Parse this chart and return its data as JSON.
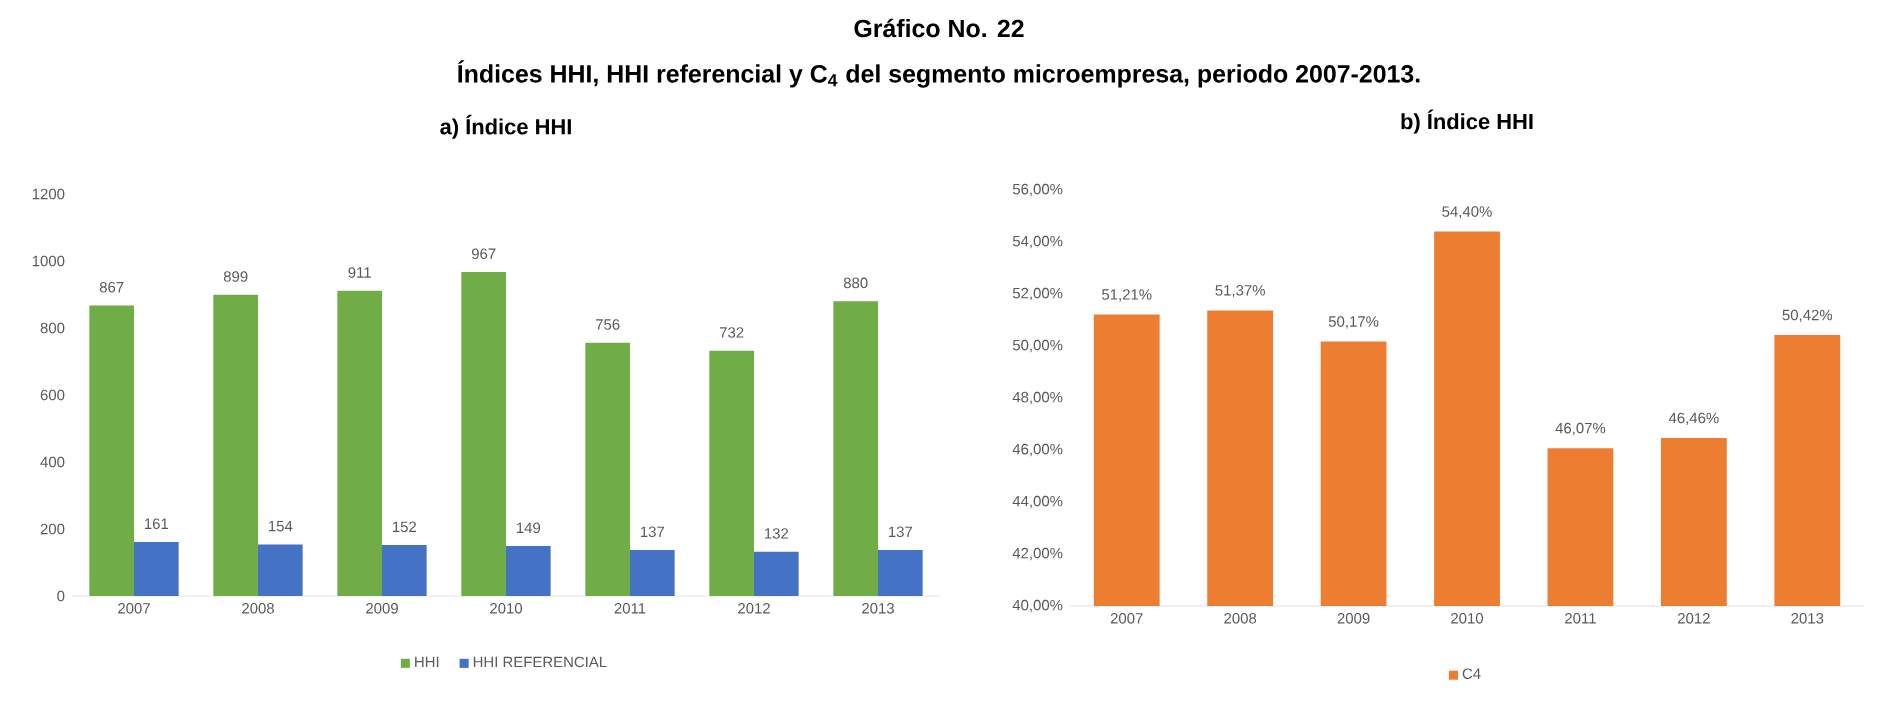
{
  "chart_data": [
    {
      "type": "bar",
      "title": "a) Índice HHI",
      "annotations": [
        "Gráfico No. 22",
        "Índices HHI, HHI referencial y C$_{4}$ del segmento microempresa, periodo 2007-2013."
      ],
      "categories": [
        "2007",
        "2008",
        "2009",
        "2010",
        "2011",
        "2012",
        "2013"
      ],
      "series": [
        {
          "name": "HHI",
          "color": "#70ad47",
          "values": [
            867,
            899,
            911,
            967,
            756,
            732,
            880
          ]
        },
        {
          "name": "HHI REFERENCIAL",
          "color": "#4472c4",
          "values": [
            161,
            154,
            152,
            149,
            137,
            132,
            137
          ]
        }
      ],
      "ylim": [
        0,
        1200
      ],
      "yticks": [
        0,
        200,
        400,
        600,
        800,
        1000,
        1200
      ],
      "data_labels": true,
      "legend": "bottom"
    },
    {
      "type": "bar",
      "title": "b) Índice HHI",
      "categories": [
        "2007",
        "2008",
        "2009",
        "2010",
        "2011",
        "2012",
        "2013"
      ],
      "series": [
        {
          "name": "C4",
          "color": "#ed7d31",
          "values": [
            51.21,
            51.37,
            50.17,
            54.4,
            46.07,
            46.46,
            50.42
          ],
          "value_labels": [
            "51,21%",
            "51,37%",
            "50,17%",
            "54,40%",
            "46,07%",
            "46,46%",
            "50,42%"
          ]
        }
      ],
      "ylim": [
        40,
        56
      ],
      "yticks": [
        {
          "value": 40,
          "label": "40,00%"
        },
        {
          "value": 42,
          "label": "42,00%"
        },
        {
          "value": 44,
          "label": "44,00%"
        },
        {
          "value": 46,
          "label": "46,00%"
        },
        {
          "value": 48,
          "label": "48,00%"
        },
        {
          "value": 50,
          "label": "50,00%"
        },
        {
          "value": 52,
          "label": "52,00%"
        },
        {
          "value": 54,
          "label": "54,00%"
        },
        {
          "value": 56,
          "label": "56,00%"
        }
      ],
      "legend": "bottom"
    }
  ]
}
